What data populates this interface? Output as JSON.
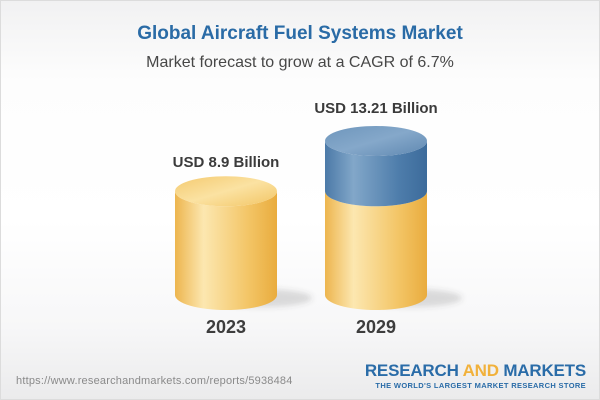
{
  "header": {
    "title": "Global Aircraft Fuel Systems Market",
    "subtitle": "Market forecast to grow at a CAGR of 6.7%"
  },
  "chart_data": {
    "type": "bar",
    "style": "3d-cylinder",
    "title": "Global Aircraft Fuel Systems Market",
    "subtitle": "Market forecast to grow at a CAGR of 6.7%",
    "unit": "USD Billion",
    "cagr_percent": 6.7,
    "categories": [
      "2023",
      "2029"
    ],
    "values": [
      8.9,
      13.21
    ],
    "bars": [
      {
        "category": "2023",
        "value": 8.9,
        "label": "USD 8.9 Billion",
        "segments": [
          {
            "value": 8.9,
            "color": "gold"
          }
        ]
      },
      {
        "category": "2029",
        "value": 13.21,
        "label": "USD 13.21 Billion",
        "segments": [
          {
            "value": 8.9,
            "color": "gold"
          },
          {
            "value": 4.31,
            "color": "blue"
          }
        ]
      }
    ],
    "colors": {
      "gold": "#F5C96B",
      "blue": "#4E7DAB",
      "title_blue": "#2A6BA6",
      "label_gray": "#3B3B3B"
    },
    "legend": null,
    "grid": false
  },
  "footer": {
    "url": "https://www.researchandmarkets.com/reports/5938484",
    "logo": {
      "word_research": "RESEARCH",
      "word_and": "AND",
      "word_markets": "MARKETS",
      "tagline": "THE WORLD'S LARGEST MARKET RESEARCH STORE"
    }
  }
}
